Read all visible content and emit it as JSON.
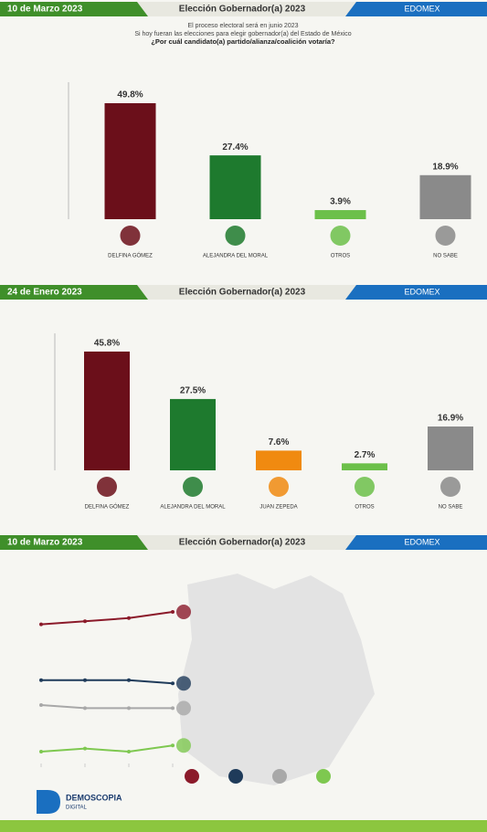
{
  "chart_data": [
    {
      "type": "bar",
      "date": "10 de Marzo 2023",
      "title": "Elección Gobernador(a) 2023",
      "region": "EDOMEX",
      "subtitle": [
        "El proceso electoral será en junio 2023",
        "Si hoy fueran las elecciones para elegir gobernador(a) del Estado de México"
      ],
      "question": "¿Por cuál candidato(a) partido/alianza/coalición votaría?",
      "categories": [
        "DELFINA GÓMEZ",
        "ALEJANDRA DEL MORAL",
        "OTROS",
        "NO SABE"
      ],
      "values": [
        49.8,
        27.4,
        3.9,
        18.9
      ],
      "value_labels": [
        "49.8%",
        "27.4%",
        "3.9%",
        "18.9%"
      ],
      "colors": [
        "#6b0f1a",
        "#1e7a2e",
        "#6cc04a",
        "#8a8a8a"
      ]
    },
    {
      "type": "bar",
      "date": "24 de Enero 2023",
      "title": "Elección Gobernador(a) 2023",
      "region": "EDOMEX",
      "categories": [
        "DELFINA GÓMEZ",
        "ALEJANDRA DEL MORAL",
        "JUAN ZEPEDA",
        "OTROS",
        "NO SABE"
      ],
      "values": [
        45.8,
        27.5,
        7.6,
        2.7,
        16.9
      ],
      "value_labels": [
        "45.8%",
        "27.5%",
        "7.6%",
        "2.7%",
        "16.9%"
      ],
      "colors": [
        "#6b0f1a",
        "#1e7a2e",
        "#f08a10",
        "#6cc04a",
        "#8a8a8a"
      ]
    },
    {
      "type": "line",
      "date": "10 de Marzo 2023",
      "title": "Elección Gobernador(a) 2023",
      "region": "EDOMEX",
      "x": [
        null,
        null,
        null,
        null
      ],
      "series": [
        {
          "color": "#8b1a2a",
          "values": [
            46,
            47,
            48,
            50
          ]
        },
        {
          "color": "#1f3b5a",
          "values": [
            28,
            28,
            28,
            27
          ]
        },
        {
          "color": "#a8a8a8",
          "values": [
            20,
            19,
            19,
            19
          ]
        },
        {
          "color": "#7ec850",
          "values": [
            5,
            6,
            5,
            7
          ]
        }
      ]
    }
  ],
  "footer": {
    "brand": "DEMOSCOPIA",
    "sub": "DIGITAL"
  }
}
